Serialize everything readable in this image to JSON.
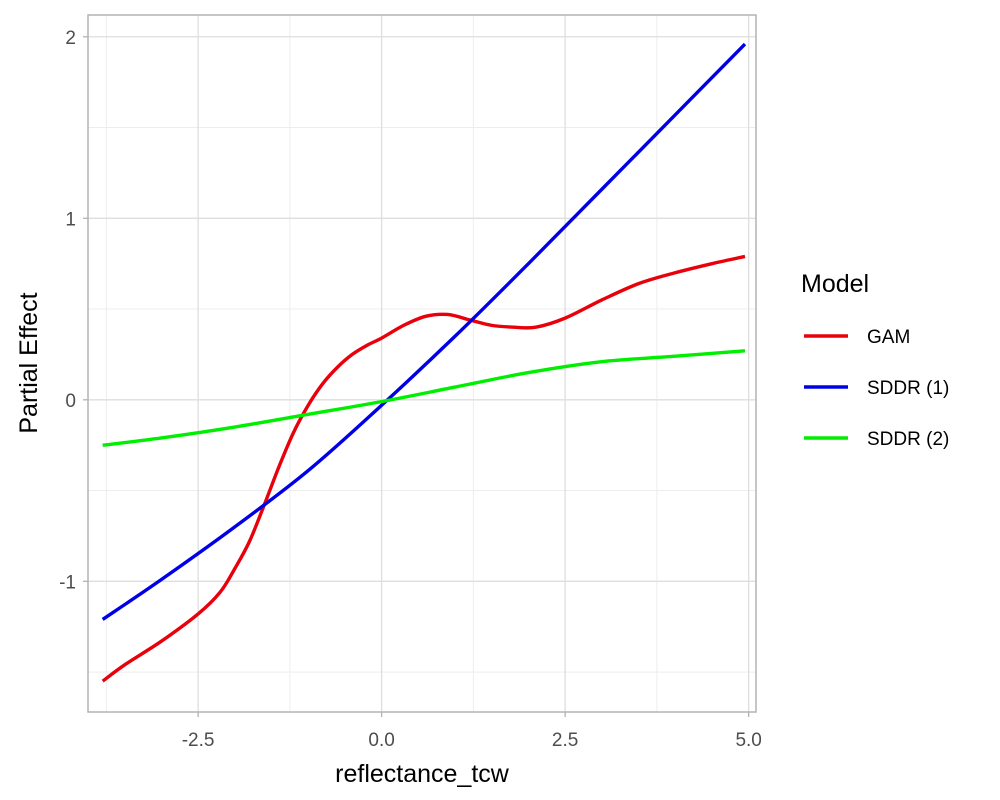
{
  "chart_data": {
    "type": "line",
    "xlabel": "reflectance_tcw",
    "ylabel": "Partial Effect",
    "xlim": [
      -4.0,
      5.1
    ],
    "ylim": [
      -1.72,
      2.12
    ],
    "x_ticks": [
      -2.5,
      0.0,
      2.5,
      5.0
    ],
    "x_tick_labels": [
      "-2.5",
      "0.0",
      "2.5",
      "5.0"
    ],
    "y_ticks": [
      -1,
      0,
      1,
      2
    ],
    "y_tick_labels": [
      "-1",
      "0",
      "1",
      "2"
    ],
    "grid": true,
    "legend": {
      "title": "Model",
      "position": "right"
    },
    "series": [
      {
        "name": "GAM",
        "color": "#e8000b",
        "x": [
          -3.8,
          -3.5,
          -3.0,
          -2.5,
          -2.2,
          -2.0,
          -1.8,
          -1.6,
          -1.4,
          -1.2,
          -1.0,
          -0.8,
          -0.6,
          -0.4,
          -0.2,
          0.0,
          0.3,
          0.6,
          0.9,
          1.2,
          1.5,
          1.8,
          2.1,
          2.5,
          3.0,
          3.5,
          4.0,
          4.5,
          4.95
        ],
        "y": [
          -1.55,
          -1.46,
          -1.33,
          -1.18,
          -1.06,
          -0.93,
          -0.78,
          -0.58,
          -0.37,
          -0.18,
          -0.03,
          0.09,
          0.18,
          0.25,
          0.3,
          0.34,
          0.41,
          0.46,
          0.47,
          0.44,
          0.41,
          0.4,
          0.4,
          0.45,
          0.55,
          0.64,
          0.7,
          0.75,
          0.79
        ]
      },
      {
        "name": "SDDR (1)",
        "color": "#0000e6",
        "x": [
          -3.8,
          -3.0,
          -2.0,
          -1.0,
          0.0,
          1.0,
          2.0,
          3.0,
          4.0,
          4.95
        ],
        "y": [
          -1.21,
          -0.99,
          -0.7,
          -0.39,
          -0.03,
          0.35,
          0.75,
          1.16,
          1.57,
          1.96
        ]
      },
      {
        "name": "SDDR (2)",
        "color": "#00ee00",
        "x": [
          -3.8,
          -3.0,
          -2.0,
          -1.0,
          0.0,
          1.0,
          2.0,
          3.0,
          4.0,
          4.95
        ],
        "y": [
          -0.25,
          -0.21,
          -0.15,
          -0.08,
          -0.01,
          0.07,
          0.15,
          0.21,
          0.24,
          0.27
        ]
      }
    ]
  }
}
